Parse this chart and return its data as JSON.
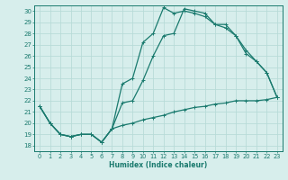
{
  "xlabel": "Humidex (Indice chaleur)",
  "background_color": "#d7eeec",
  "grid_color": "#b8dbd8",
  "line_color": "#1a7a6e",
  "xlim": [
    -0.5,
    23.5
  ],
  "ylim": [
    17.5,
    30.5
  ],
  "xticks": [
    0,
    1,
    2,
    3,
    4,
    5,
    6,
    7,
    8,
    9,
    10,
    11,
    12,
    13,
    14,
    15,
    16,
    17,
    18,
    19,
    20,
    21,
    22,
    23
  ],
  "yticks": [
    18,
    19,
    20,
    21,
    22,
    23,
    24,
    25,
    26,
    27,
    28,
    29,
    30
  ],
  "line1_x": [
    0,
    1,
    2,
    3,
    4,
    5,
    6,
    7,
    8,
    9,
    10,
    11,
    12,
    13,
    14,
    15,
    16,
    17,
    18,
    19,
    20,
    21,
    22,
    23
  ],
  "line1_y": [
    21.5,
    20.0,
    19.0,
    18.8,
    19.0,
    19.0,
    18.3,
    19.5,
    19.8,
    20.0,
    20.3,
    20.5,
    20.7,
    21.0,
    21.2,
    21.4,
    21.5,
    21.7,
    21.8,
    22.0,
    22.0,
    22.0,
    22.1,
    22.3
  ],
  "line2_x": [
    0,
    1,
    2,
    3,
    4,
    5,
    6,
    7,
    8,
    9,
    10,
    11,
    12,
    13,
    14,
    15,
    16,
    17,
    18,
    19,
    20,
    21,
    22,
    23
  ],
  "line2_y": [
    21.5,
    20.0,
    19.0,
    18.8,
    19.0,
    19.0,
    18.3,
    19.5,
    21.8,
    22.0,
    23.8,
    26.0,
    27.8,
    28.0,
    30.2,
    30.0,
    29.8,
    28.8,
    28.8,
    27.8,
    26.2,
    25.5,
    24.5,
    22.3
  ],
  "line3_x": [
    0,
    1,
    2,
    3,
    4,
    5,
    6,
    7,
    8,
    9,
    10,
    11,
    12,
    13,
    14,
    15,
    16,
    17,
    18,
    19,
    20,
    21,
    22,
    23
  ],
  "line3_y": [
    21.5,
    20.0,
    19.0,
    18.8,
    19.0,
    19.0,
    18.3,
    19.5,
    23.5,
    24.0,
    27.2,
    28.0,
    30.3,
    29.8,
    30.0,
    29.8,
    29.5,
    28.8,
    28.5,
    27.8,
    26.5,
    25.5,
    24.5,
    22.3
  ]
}
